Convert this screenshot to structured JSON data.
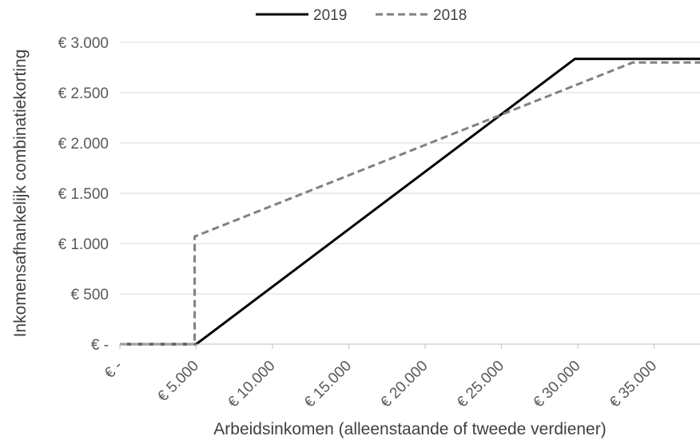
{
  "chart_data": {
    "type": "line",
    "title": "",
    "xlabel": "Arbeidsinkomen (alleenstaande of tweede verdiener)",
    "ylabel": "Inkomensafhankelijk combinatiekorting",
    "xlim": [
      0,
      38000
    ],
    "ylim": [
      0,
      3000
    ],
    "x_ticks": [
      {
        "value": 0,
        "label": "€ -"
      },
      {
        "value": 5000,
        "label": "€ 5.000"
      },
      {
        "value": 10000,
        "label": "€ 10.000"
      },
      {
        "value": 15000,
        "label": "€ 15.000"
      },
      {
        "value": 20000,
        "label": "€ 20.000"
      },
      {
        "value": 25000,
        "label": "€ 25.000"
      },
      {
        "value": 30000,
        "label": "€ 30.000"
      },
      {
        "value": 35000,
        "label": "€ 35.000"
      }
    ],
    "y_ticks": [
      {
        "value": 0,
        "label": "€ -"
      },
      {
        "value": 500,
        "label": "€ 500"
      },
      {
        "value": 1000,
        "label": "€ 1.000"
      },
      {
        "value": 1500,
        "label": "€ 1.500"
      },
      {
        "value": 2000,
        "label": "€ 2.000"
      },
      {
        "value": 2500,
        "label": "€ 2.500"
      },
      {
        "value": 3000,
        "label": "€ 3.000"
      }
    ],
    "grid": "horizontal",
    "legend_position": "top",
    "series": [
      {
        "name": "2019",
        "color": "#000000",
        "style": "solid",
        "points": [
          [
            0,
            0
          ],
          [
            5000,
            0
          ],
          [
            29800,
            2835
          ],
          [
            38000,
            2835
          ]
        ]
      },
      {
        "name": "2018",
        "color": "#808080",
        "style": "dashed",
        "points": [
          [
            0,
            0
          ],
          [
            4900,
            0
          ],
          [
            4900,
            1070
          ],
          [
            33600,
            2800
          ],
          [
            38000,
            2800
          ]
        ]
      }
    ]
  }
}
